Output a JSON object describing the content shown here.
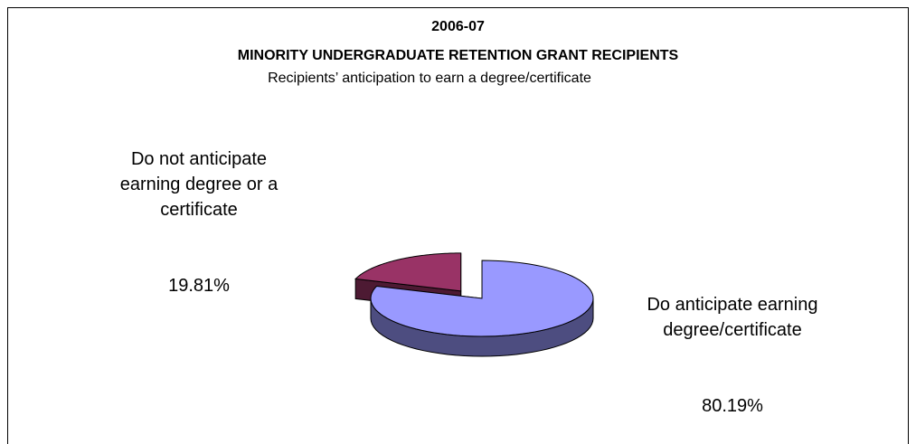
{
  "chart_data": {
    "type": "pie",
    "title": "2006-07",
    "subtitle": "MINORITY UNDERGRADUATE RETENTION GRANT RECIPIENTS",
    "caption": "Recipients’ anticipation to earn a degree/certificate",
    "categories": [
      "Do not anticipate earning degree or a certificate",
      "Do anticipate earning degree/certificate"
    ],
    "values": [
      19.81,
      80.19
    ],
    "value_labels": [
      "19.81%",
      "80.19%"
    ],
    "colors": [
      "#993366",
      "#9999ff"
    ],
    "three_d": true
  }
}
